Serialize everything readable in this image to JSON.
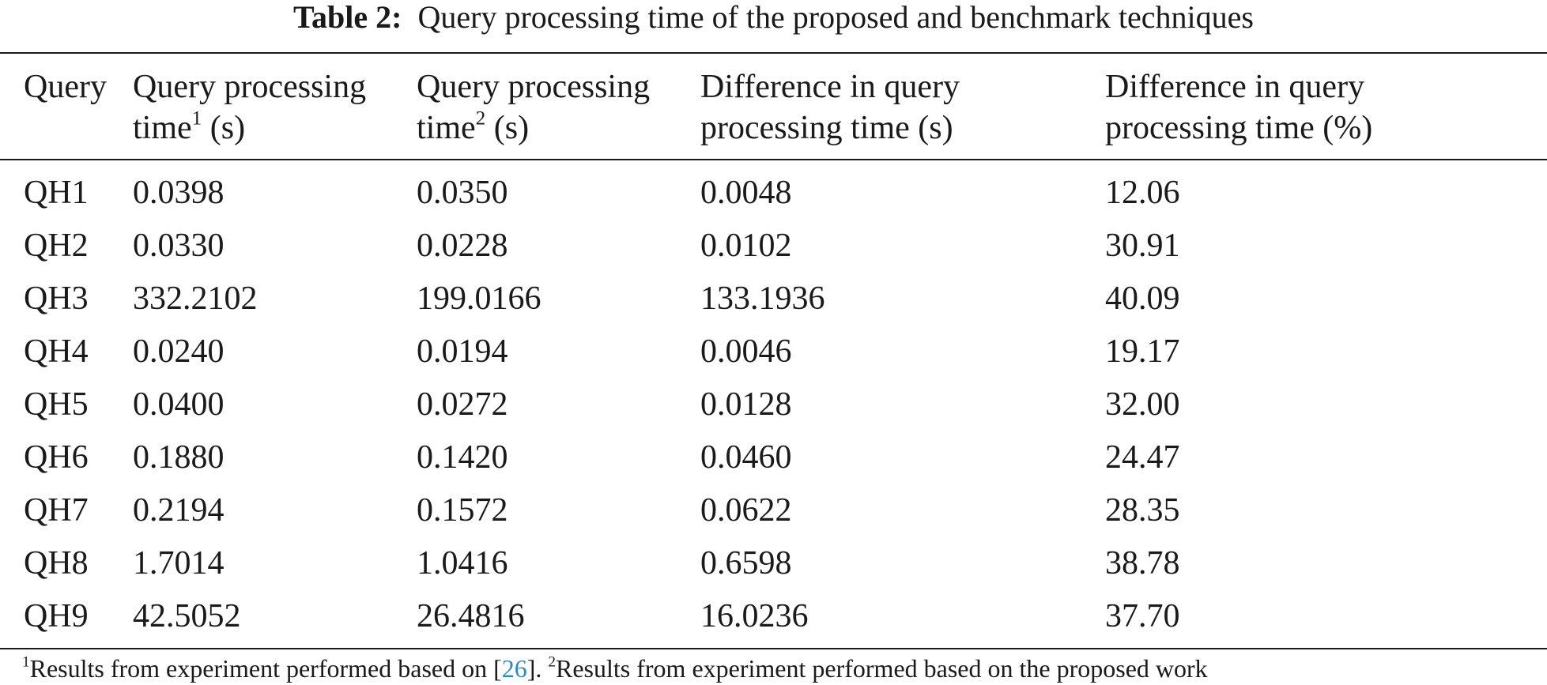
{
  "caption": {
    "label": "Table 2:",
    "text": "Query processing time of the proposed and benchmark techniques"
  },
  "table": {
    "headers": [
      {
        "line1": "Query",
        "line2": "",
        "sup": ""
      },
      {
        "line1": "Query processing",
        "line2": "time",
        "sup": "1",
        "line2_suffix": " (s)"
      },
      {
        "line1": "Query processing",
        "line2": "time",
        "sup": "2",
        "line2_suffix": " (s)"
      },
      {
        "line1": "Difference in query",
        "line2": "processing time (s)",
        "sup": ""
      },
      {
        "line1": "Difference in query",
        "line2": "processing time (%)",
        "sup": ""
      }
    ],
    "rows": [
      [
        "QH1",
        "0.0398",
        "0.0350",
        "0.0048",
        "12.06"
      ],
      [
        "QH2",
        "0.0330",
        "0.0228",
        "0.0102",
        "30.91"
      ],
      [
        "QH3",
        "332.2102",
        "199.0166",
        "133.1936",
        "40.09"
      ],
      [
        "QH4",
        "0.0240",
        "0.0194",
        "0.0046",
        "19.17"
      ],
      [
        "QH5",
        "0.0400",
        "0.0272",
        "0.0128",
        "32.00"
      ],
      [
        "QH6",
        "0.1880",
        "0.1420",
        "0.0460",
        "24.47"
      ],
      [
        "QH7",
        "0.2194",
        "0.1572",
        "0.0622",
        "28.35"
      ],
      [
        "QH8",
        "1.7014",
        "1.0416",
        "0.6598",
        "38.78"
      ],
      [
        "QH9",
        "42.5052",
        "26.4816",
        "16.0236",
        "37.70"
      ]
    ]
  },
  "footnote": {
    "sup1": "1",
    "part1": "Results from experiment performed based on [",
    "ref": "26",
    "part2": "]. ",
    "sup2": "2",
    "part3": "Results from experiment performed based on the proposed work"
  },
  "colors": {
    "text": "#1a1a1a",
    "link": "#2a8bc4"
  }
}
